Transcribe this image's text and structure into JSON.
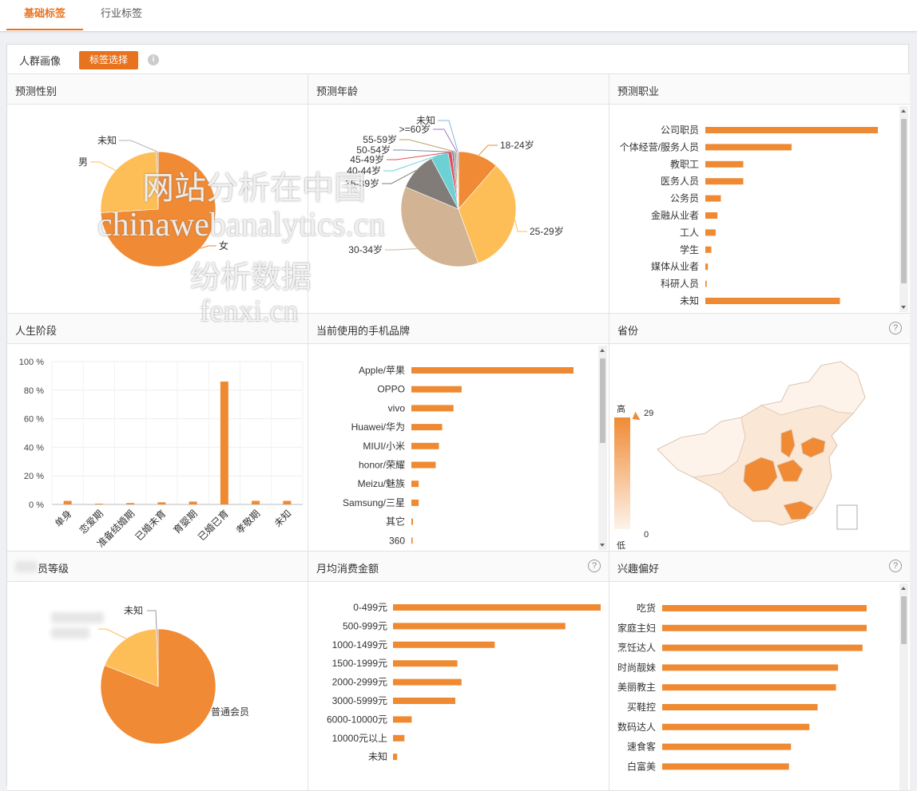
{
  "tabs": [
    {
      "label": "基础标签",
      "active": true
    },
    {
      "label": "行业标签",
      "active": false
    }
  ],
  "section": {
    "title": "人群画像",
    "button_label": "标签选择",
    "info_icon": "info-icon"
  },
  "colors": {
    "accent": "#e8731e",
    "bar": "#ef8a33",
    "pie_orange": "#f08a34",
    "pie_yellow": "#fdbe57",
    "pie_tan": "#d2b495",
    "pie_gray": "#827c79",
    "pie_teal": "#6cd1d4"
  },
  "cells": {
    "gender": {
      "title": "预测性别"
    },
    "age": {
      "title": "预测年龄"
    },
    "job": {
      "title": "预测职业"
    },
    "life": {
      "title": "人生阶段"
    },
    "phone": {
      "title": "当前使用的手机品牌"
    },
    "province": {
      "title": "省份",
      "legend_high": "高",
      "legend_low": "低",
      "max": "29",
      "min": "0"
    },
    "member": {
      "title": "员等级"
    },
    "spend": {
      "title": "月均消费金额"
    },
    "interest": {
      "title": "兴趣偏好"
    }
  },
  "watermark": {
    "line1": "网站分析在中国",
    "line2": "chinawebanalytics.cn",
    "line3": "纷析数据",
    "line4": "fenxi.cn"
  },
  "chart_data": [
    {
      "id": "gender",
      "type": "pie",
      "labels": [
        "女",
        "男",
        "未知"
      ],
      "values": [
        74,
        25.5,
        0.5
      ]
    },
    {
      "id": "age",
      "type": "pie",
      "labels": [
        "18-24岁",
        "25-29岁",
        "30-34岁",
        "35-39岁",
        "40-44岁",
        "45-49岁",
        "50-54岁",
        "55-59岁",
        ">=60岁",
        "未知"
      ],
      "values": [
        10.5,
        30.5,
        34,
        10,
        4.5,
        1,
        0.6,
        0.5,
        0.3,
        0.3
      ]
    },
    {
      "id": "job",
      "type": "bar",
      "orientation": "horizontal",
      "categories": [
        "公司职员",
        "个体经营/服务人员",
        "教职工",
        "医务人员",
        "公务员",
        "金融从业者",
        "工人",
        "学生",
        "媒体从业者",
        "科研人员",
        "未知"
      ],
      "values": [
        100,
        50,
        22,
        22,
        9,
        7,
        6,
        3.5,
        1.5,
        0.8,
        78
      ]
    },
    {
      "id": "life",
      "type": "bar",
      "categories": [
        "单身",
        "恋爱期",
        "准备结婚期",
        "已婚未育",
        "育婴期",
        "已婚已育",
        "孝敬期",
        "未知"
      ],
      "values": [
        2.5,
        0.3,
        1,
        1.5,
        2,
        86,
        2.5,
        2.5
      ],
      "yticks": [
        "0 %",
        "20 %",
        "40 %",
        "60 %",
        "80 %",
        "100 %"
      ],
      "ylim": [
        0,
        100
      ]
    },
    {
      "id": "phone",
      "type": "bar",
      "orientation": "horizontal",
      "categories": [
        "Apple/苹果",
        "OPPO",
        "vivo",
        "Huawei/华为",
        "MIUI/小米",
        "honor/荣耀",
        "Meizu/魅族",
        "Samsung/三星",
        "其它",
        "360"
      ],
      "values": [
        100,
        31,
        26,
        19,
        17,
        15,
        4.5,
        4.5,
        1,
        0.8
      ]
    },
    {
      "id": "spend",
      "type": "bar",
      "orientation": "horizontal",
      "categories": [
        "0-499元",
        "500-999元",
        "1000-1499元",
        "1500-1999元",
        "2000-2999元",
        "3000-5999元",
        "6000-10000元",
        "10000元以上",
        "未知"
      ],
      "values": [
        100,
        83,
        49,
        31,
        33,
        30,
        9,
        5.5,
        2
      ]
    },
    {
      "id": "interest",
      "type": "bar",
      "orientation": "horizontal",
      "categories": [
        "吃货",
        "家庭主妇",
        "烹饪达人",
        "时尚靓妹",
        "美丽教主",
        "买鞋控",
        "数码达人",
        "速食客",
        "白富美"
      ],
      "values": [
        100,
        100,
        98,
        86,
        85,
        76,
        72,
        63,
        62
      ]
    },
    {
      "id": "member",
      "type": "pie",
      "labels": [
        "普通会员",
        "未知"
      ],
      "values": [
        81,
        0.5
      ]
    }
  ]
}
